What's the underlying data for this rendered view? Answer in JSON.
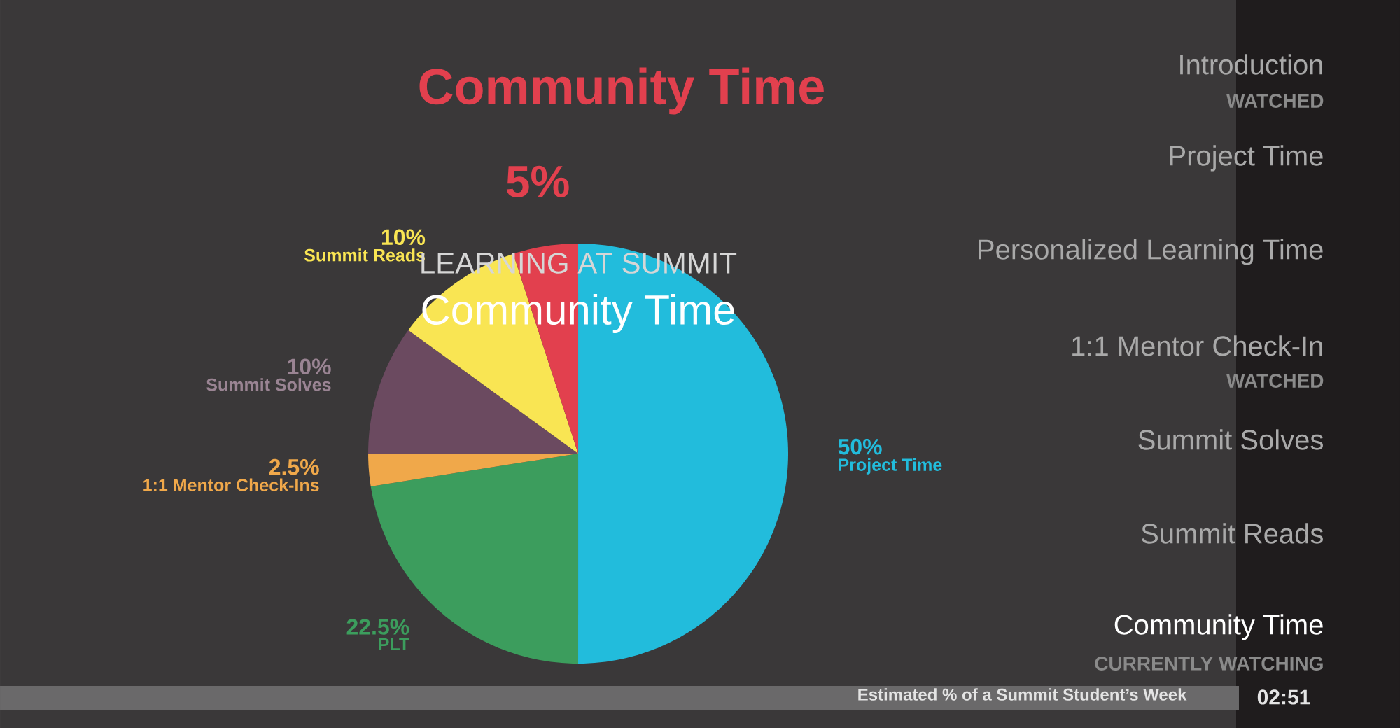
{
  "chart_data": {
    "type": "pie",
    "title": "Community Time",
    "categories": [
      "Project Time",
      "PLT",
      "1:1 Mentor Check-Ins",
      "Summit Solves",
      "Summit Reads",
      null
    ],
    "values": [
      50,
      22.5,
      2.5,
      10,
      10,
      5
    ],
    "colors": [
      "#22bcdc",
      "#3c9d5d",
      "#f0a84a",
      "#6b4a60",
      "#f9e553",
      "#e2404e"
    ],
    "value_labels": [
      "50%",
      "22.5%",
      "2.5%",
      "10%",
      "10%",
      "5%"
    ],
    "annotations": [
      "LEARNING AT SUMMIT",
      "Community Time",
      "Introduction",
      "WATCHED",
      "Project Time",
      "Personalized Learning Time",
      "1:1 Mentor Check-In",
      "WATCHED",
      "Summit Solves",
      "Summit Reads",
      "Community Time",
      "CURRENTLY WATCHING",
      "Estimated % of a Summit Student’s Week",
      "02:51"
    ]
  }
}
